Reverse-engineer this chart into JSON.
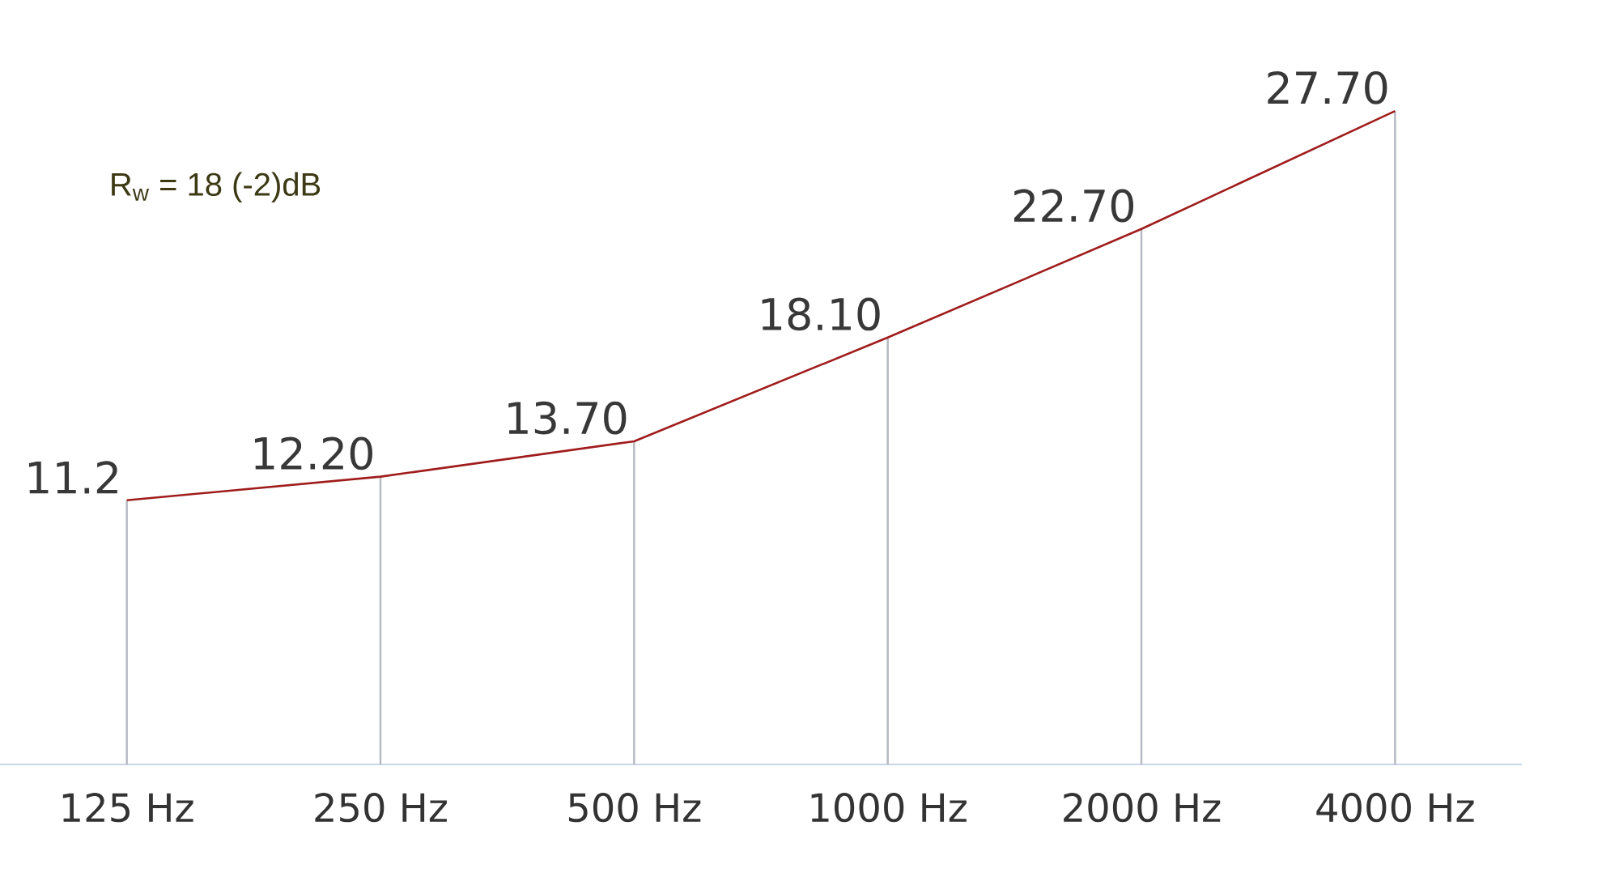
{
  "chart_data": {
    "type": "line",
    "categories": [
      "125 Hz",
      "250 Hz",
      "500 Hz",
      "1000 Hz",
      "2000 Hz",
      "4000 Hz"
    ],
    "series": [
      {
        "type": "bar",
        "color": "#b4b8c0",
        "values": [
          11.2,
          12.2,
          13.7,
          18.1,
          22.7,
          27.7
        ]
      },
      {
        "color": "#a01c1c",
        "values": [
          11.2,
          12.2,
          13.7,
          18.1,
          22.7,
          27.7
        ],
        "value_labels": [
          "11.2",
          "12.20",
          "13.70",
          "18.10",
          "22.70",
          "27.70"
        ]
      }
    ],
    "annotations": [
      "R$_{w}$ = 18 (-2)dB"
    ],
    "tick_labels": "x"
  }
}
